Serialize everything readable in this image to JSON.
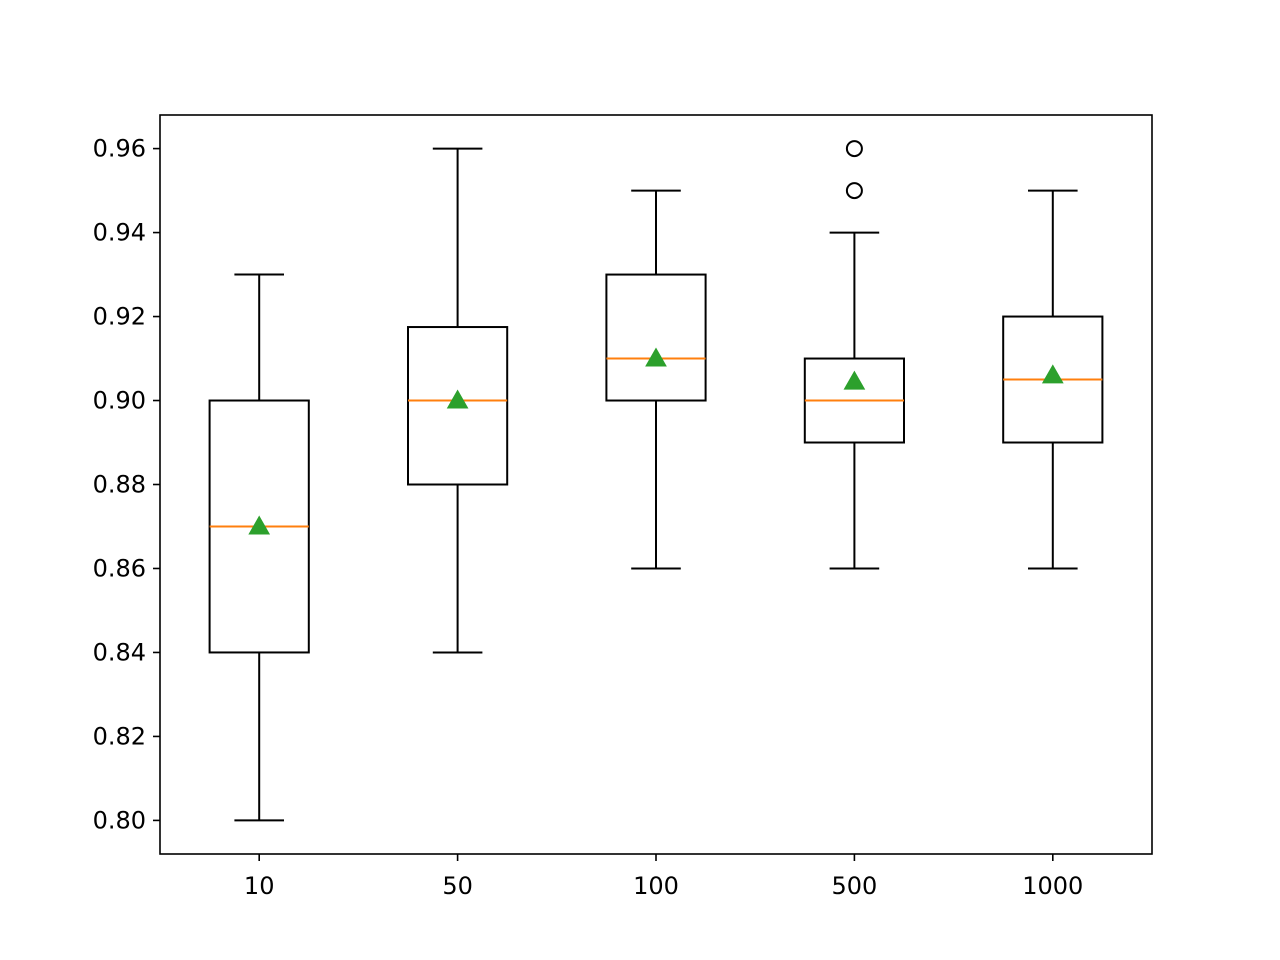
{
  "chart_data": {
    "type": "boxplot",
    "title": "",
    "xlabel": "",
    "ylabel": "",
    "categories": [
      "10",
      "50",
      "100",
      "500",
      "1000"
    ],
    "ylim": [
      0.792,
      0.968
    ],
    "y_ticks": [
      0.8,
      0.82,
      0.84,
      0.86,
      0.88,
      0.9,
      0.92,
      0.94,
      0.96
    ],
    "y_tick_labels": [
      "0.80",
      "0.82",
      "0.84",
      "0.86",
      "0.88",
      "0.90",
      "0.92",
      "0.94",
      "0.96"
    ],
    "grid": false,
    "legend": "none",
    "boxes": [
      {
        "category": "10",
        "whisker_low": 0.8,
        "q1": 0.84,
        "median": 0.87,
        "q3": 0.9,
        "whisker_high": 0.93,
        "mean": 0.87,
        "outliers": []
      },
      {
        "category": "50",
        "whisker_low": 0.84,
        "q1": 0.88,
        "median": 0.9,
        "q3": 0.9175,
        "whisker_high": 0.96,
        "mean": 0.9,
        "outliers": []
      },
      {
        "category": "100",
        "whisker_low": 0.86,
        "q1": 0.9,
        "median": 0.91,
        "q3": 0.93,
        "whisker_high": 0.95,
        "mean": 0.91,
        "outliers": []
      },
      {
        "category": "500",
        "whisker_low": 0.86,
        "q1": 0.89,
        "median": 0.9,
        "q3": 0.91,
        "whisker_high": 0.94,
        "mean": 0.9045,
        "outliers": [
          0.95,
          0.96
        ]
      },
      {
        "category": "1000",
        "whisker_low": 0.86,
        "q1": 0.89,
        "median": 0.905,
        "q3": 0.92,
        "whisker_high": 0.95,
        "mean": 0.906,
        "outliers": []
      }
    ],
    "colors": {
      "box": "#000000",
      "median": "#ff7f0e",
      "mean_marker": "#2ca02c",
      "outlier": "#000000",
      "background": "#ffffff"
    }
  }
}
